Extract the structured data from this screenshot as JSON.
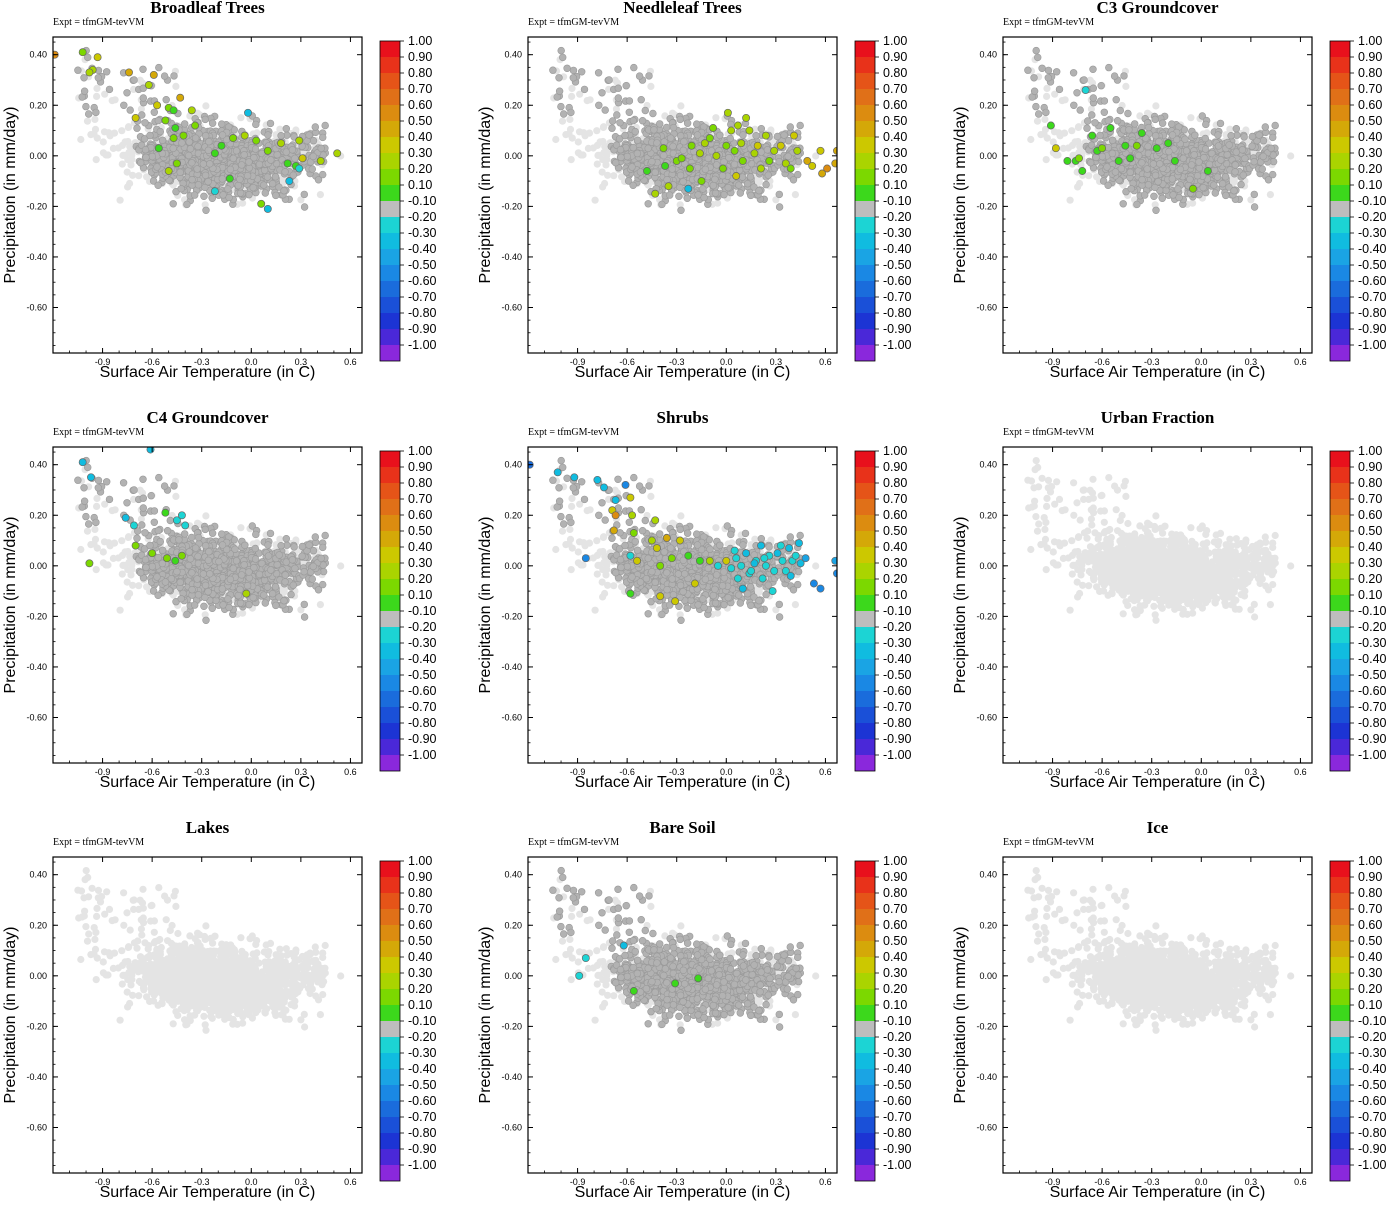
{
  "figure": {
    "expt_label": "Expt = tfmGM-tevVM",
    "xlabel": "Surface Air Temperature (in C)",
    "ylabel": "Precipitation (in mm/day)"
  },
  "axes": {
    "xlim": [
      -1.2,
      0.67
    ],
    "ylim": [
      -0.78,
      0.47
    ],
    "xticks": [
      -0.9,
      -0.6,
      -0.3,
      0.0,
      0.3,
      0.6
    ],
    "xtick_labels": [
      "-0.9",
      "-0.6",
      "-0.3",
      "0.0",
      "0.3",
      "0.6"
    ],
    "yticks": [
      0.4,
      0.2,
      0.0,
      -0.2,
      -0.4,
      -0.6
    ],
    "ytick_labels": [
      "0.40",
      "0.20",
      "0.00",
      "-0.20",
      "-0.40",
      "-0.60"
    ]
  },
  "colorbar": {
    "labels": [
      "1.00",
      "0.90",
      "0.80",
      "0.70",
      "0.60",
      "0.50",
      "0.40",
      "0.30",
      "0.20",
      "0.10",
      "-0.10",
      "-0.20",
      "-0.30",
      "-0.40",
      "-0.50",
      "-0.60",
      "-0.70",
      "-0.80",
      "-0.90",
      "-1.00"
    ],
    "colors": [
      "#e8101c",
      "#e8321a",
      "#e55418",
      "#e07018",
      "#dc8c10",
      "#d4a808",
      "#ccc800",
      "#aad400",
      "#7cd800",
      "#3cd81c",
      "#bdbdbd",
      "#1cd4d4",
      "#10bce0",
      "#1aa4e4",
      "#1a88e4",
      "#1a6cdc",
      "#1a50d8",
      "#1c34d4",
      "#4a28d8",
      "#8a28dc"
    ],
    "background_point_color": "#e4e4e4",
    "zero_point_color": "#b2b2b2"
  },
  "chart_data": [
    {
      "type": "scatter",
      "title": "Broadleaf Trees",
      "xlabel": "Surface Air Temperature (in C)",
      "ylabel": "Precipitation (in mm/day)",
      "xlim": [
        -1.2,
        0.67
      ],
      "ylim": [
        -0.78,
        0.47
      ],
      "colorscale": [
        -1.0,
        1.0
      ],
      "highlight_points": [
        [
          -1.19,
          0.4,
          0.6
        ],
        [
          -1.02,
          0.41,
          0.2
        ],
        [
          -0.93,
          0.39,
          0.4
        ],
        [
          -0.96,
          0.34,
          0.3
        ],
        [
          -0.98,
          0.33,
          0.3
        ],
        [
          -0.74,
          0.33,
          0.5
        ],
        [
          -0.59,
          0.32,
          0.5
        ],
        [
          -0.62,
          0.28,
          0.3
        ],
        [
          -0.43,
          0.23,
          0.5
        ],
        [
          -0.57,
          0.2,
          0.4
        ],
        [
          -0.5,
          0.19,
          0.2
        ],
        [
          -0.47,
          0.18,
          0.1
        ],
        [
          -0.36,
          0.18,
          0.3
        ],
        [
          -0.7,
          0.15,
          0.4
        ],
        [
          -0.52,
          0.14,
          0.2
        ],
        [
          -0.46,
          0.11,
          0.1
        ],
        [
          -0.41,
          0.08,
          0.2
        ],
        [
          -0.47,
          0.07,
          0.2
        ],
        [
          -0.56,
          0.03,
          0.1
        ],
        [
          -0.45,
          -0.03,
          0.2
        ],
        [
          -0.5,
          -0.06,
          0.3
        ],
        [
          -0.18,
          0.04,
          0.1
        ],
        [
          -0.22,
          0.01,
          0.1
        ],
        [
          -0.11,
          0.07,
          0.2
        ],
        [
          -0.04,
          0.08,
          0.3
        ],
        [
          0.03,
          0.06,
          0.2
        ],
        [
          0.1,
          0.02,
          0.2
        ],
        [
          0.18,
          0.05,
          0.3
        ],
        [
          0.22,
          -0.03,
          0.1
        ],
        [
          0.29,
          0.06,
          0.3
        ],
        [
          0.31,
          -0.01,
          0.4
        ],
        [
          0.42,
          -0.02,
          0.3
        ],
        [
          0.52,
          0.01,
          0.3
        ],
        [
          0.27,
          -0.04,
          0.1
        ],
        [
          -0.02,
          0.17,
          -0.3
        ],
        [
          0.23,
          -0.1,
          -0.3
        ],
        [
          0.29,
          -0.05,
          -0.2
        ],
        [
          0.1,
          -0.21,
          -0.3
        ],
        [
          -0.22,
          -0.14,
          -0.2
        ],
        [
          0.06,
          -0.19,
          0.2
        ],
        [
          -0.13,
          -0.09,
          0.1
        ],
        [
          -0.34,
          0.12,
          0.2
        ]
      ]
    },
    {
      "type": "scatter",
      "title": "Needleleaf Trees",
      "xlabel": "Surface Air Temperature (in C)",
      "ylabel": "Precipitation (in mm/day)",
      "xlim": [
        -1.2,
        0.67
      ],
      "ylim": [
        -0.78,
        0.47
      ],
      "colorscale": [
        -1.0,
        1.0
      ],
      "highlight_points": [
        [
          -0.48,
          -0.06,
          0.1
        ],
        [
          -0.37,
          -0.04,
          0.1
        ],
        [
          -0.3,
          -0.02,
          0.2
        ],
        [
          -0.43,
          -0.15,
          0.3
        ],
        [
          -0.35,
          -0.12,
          0.3
        ],
        [
          -0.22,
          -0.05,
          0.2
        ],
        [
          -0.21,
          0.04,
          0.2
        ],
        [
          -0.16,
          0.01,
          0.3
        ],
        [
          -0.13,
          0.05,
          0.3
        ],
        [
          -0.1,
          0.07,
          0.2
        ],
        [
          -0.06,
          0.0,
          0.3
        ],
        [
          -0.02,
          -0.05,
          0.2
        ],
        [
          0.01,
          0.17,
          0.3
        ],
        [
          0.03,
          0.1,
          0.3
        ],
        [
          0.05,
          0.02,
          0.2
        ],
        [
          0.06,
          -0.08,
          0.4
        ],
        [
          0.09,
          0.05,
          0.3
        ],
        [
          0.1,
          -0.02,
          0.2
        ],
        [
          0.14,
          0.1,
          0.3
        ],
        [
          0.17,
          0.01,
          0.3
        ],
        [
          0.19,
          0.04,
          0.4
        ],
        [
          0.21,
          -0.05,
          0.3
        ],
        [
          0.24,
          0.08,
          0.3
        ],
        [
          0.26,
          -0.02,
          0.2
        ],
        [
          0.29,
          0.02,
          0.3
        ],
        [
          0.33,
          0.04,
          0.4
        ],
        [
          0.36,
          -0.03,
          0.3
        ],
        [
          0.41,
          0.08,
          0.4
        ],
        [
          0.43,
          0.02,
          0.3
        ],
        [
          0.39,
          -0.05,
          0.2
        ],
        [
          0.49,
          -0.02,
          0.5
        ],
        [
          0.52,
          -0.04,
          0.4
        ],
        [
          0.58,
          -0.07,
          0.5
        ],
        [
          0.61,
          -0.05,
          0.6
        ],
        [
          0.66,
          -0.03,
          0.5
        ],
        [
          0.67,
          0.02,
          0.5
        ],
        [
          0.57,
          0.02,
          0.4
        ],
        [
          0.12,
          0.15,
          0.3
        ],
        [
          -0.27,
          -0.01,
          0.2
        ],
        [
          -0.08,
          0.11,
          0.2
        ],
        [
          0.0,
          0.04,
          0.2
        ],
        [
          0.07,
          0.12,
          0.3
        ],
        [
          -0.15,
          -0.1,
          0.2
        ],
        [
          -0.23,
          -0.13,
          -0.3
        ],
        [
          -0.38,
          0.03,
          0.2
        ]
      ]
    },
    {
      "type": "scatter",
      "title": "C3 Groundcover",
      "xlabel": "Surface Air Temperature (in C)",
      "ylabel": "Precipitation (in mm/day)",
      "xlim": [
        -1.2,
        0.67
      ],
      "ylim": [
        -0.78,
        0.47
      ],
      "colorscale": [
        -1.0,
        1.0
      ],
      "highlight_points": [
        [
          -0.91,
          0.12,
          0.1
        ],
        [
          -0.88,
          0.03,
          0.4
        ],
        [
          -0.81,
          -0.02,
          0.1
        ],
        [
          -0.76,
          -0.02,
          0.1
        ],
        [
          -0.72,
          -0.06,
          0.1
        ],
        [
          -0.74,
          -0.01,
          0.2
        ],
        [
          -0.63,
          0.02,
          0.1
        ],
        [
          -0.5,
          -0.02,
          0.1
        ],
        [
          -0.46,
          0.04,
          0.1
        ],
        [
          -0.39,
          0.04,
          0.2
        ],
        [
          -0.36,
          0.09,
          0.1
        ],
        [
          -0.27,
          0.03,
          0.1
        ],
        [
          -0.16,
          -0.02,
          0.1
        ],
        [
          -0.05,
          -0.13,
          0.2
        ],
        [
          -0.66,
          0.08,
          0.1
        ],
        [
          -0.6,
          0.03,
          0.2
        ],
        [
          -0.55,
          0.11,
          0.1
        ],
        [
          -0.7,
          0.26,
          -0.2
        ],
        [
          -0.43,
          -0.01,
          0.1
        ],
        [
          0.04,
          -0.06,
          0.1
        ],
        [
          -0.2,
          0.05,
          0.1
        ]
      ]
    },
    {
      "type": "scatter",
      "title": "C4 Groundcover",
      "xlabel": "Surface Air Temperature (in C)",
      "ylabel": "Precipitation (in mm/day)",
      "xlim": [
        -1.2,
        0.67
      ],
      "ylim": [
        -0.78,
        0.47
      ],
      "colorscale": [
        -1.0,
        1.0
      ],
      "highlight_points": [
        [
          -1.02,
          0.41,
          -0.3
        ],
        [
          -0.97,
          0.35,
          -0.3
        ],
        [
          -0.61,
          0.46,
          -0.3
        ],
        [
          -0.45,
          0.18,
          -0.2
        ],
        [
          -0.42,
          0.2,
          -0.2
        ],
        [
          -0.4,
          0.16,
          -0.2
        ],
        [
          -0.52,
          0.21,
          0.1
        ],
        [
          -0.6,
          0.05,
          0.2
        ],
        [
          -0.51,
          0.03,
          0.2
        ],
        [
          -0.42,
          0.04,
          0.2
        ],
        [
          -0.46,
          0.02,
          0.1
        ],
        [
          -0.7,
          0.08,
          0.2
        ],
        [
          -0.98,
          0.01,
          0.2
        ],
        [
          -0.71,
          0.16,
          -0.2
        ],
        [
          -0.03,
          -0.11,
          0.3
        ],
        [
          -0.76,
          0.19,
          -0.3
        ]
      ]
    },
    {
      "type": "scatter",
      "title": "Shrubs",
      "xlabel": "Surface Air Temperature (in C)",
      "ylabel": "Precipitation (in mm/day)",
      "xlim": [
        -1.2,
        0.67
      ],
      "ylim": [
        -0.78,
        0.47
      ],
      "colorscale": [
        -1.0,
        1.0
      ],
      "highlight_points": [
        [
          -1.19,
          0.4,
          -0.6
        ],
        [
          -1.02,
          0.37,
          -0.3
        ],
        [
          -0.92,
          0.35,
          -0.3
        ],
        [
          -0.78,
          0.34,
          -0.3
        ],
        [
          -0.74,
          0.31,
          -0.3
        ],
        [
          -0.61,
          0.32,
          -0.5
        ],
        [
          -0.58,
          0.27,
          0.4
        ],
        [
          -0.67,
          0.26,
          -0.3
        ],
        [
          -0.69,
          0.22,
          0.4
        ],
        [
          -0.67,
          0.2,
          0.6
        ],
        [
          -0.57,
          0.2,
          0.3
        ],
        [
          -0.68,
          0.14,
          0.5
        ],
        [
          -0.56,
          0.13,
          0.2
        ],
        [
          -0.43,
          0.18,
          0.3
        ],
        [
          -0.36,
          0.11,
          0.5
        ],
        [
          -0.45,
          0.1,
          0.3
        ],
        [
          -0.42,
          0.07,
          0.4
        ],
        [
          -0.28,
          0.1,
          0.4
        ],
        [
          -0.33,
          0.03,
          0.2
        ],
        [
          -0.23,
          0.04,
          0.1
        ],
        [
          -0.4,
          0.0,
          0.2
        ],
        [
          -0.54,
          0.02,
          0.4
        ],
        [
          -0.58,
          0.04,
          -0.2
        ],
        [
          -0.85,
          0.03,
          -0.5
        ],
        [
          -0.4,
          -0.12,
          0.4
        ],
        [
          -0.58,
          -0.11,
          0.1
        ],
        [
          -0.31,
          -0.14,
          0.4
        ],
        [
          -0.19,
          -0.07,
          0.4
        ],
        [
          -0.16,
          0.02,
          0.1
        ],
        [
          -0.1,
          0.02,
          0.3
        ],
        [
          -0.05,
          0.0,
          -0.2
        ],
        [
          0.0,
          0.02,
          0.4
        ],
        [
          0.03,
          -0.01,
          -0.2
        ],
        [
          0.06,
          0.03,
          -0.2
        ],
        [
          0.09,
          0.0,
          -0.2
        ],
        [
          0.12,
          0.05,
          -0.3
        ],
        [
          0.14,
          -0.03,
          -0.2
        ],
        [
          0.18,
          0.02,
          -0.2
        ],
        [
          0.21,
          0.08,
          -0.3
        ],
        [
          0.24,
          0.0,
          -0.2
        ],
        [
          0.26,
          0.04,
          -0.2
        ],
        [
          0.29,
          -0.02,
          -0.2
        ],
        [
          0.31,
          0.05,
          -0.3
        ],
        [
          0.34,
          0.02,
          -0.2
        ],
        [
          0.36,
          -0.02,
          -0.2
        ],
        [
          0.38,
          0.07,
          -0.3
        ],
        [
          0.4,
          0.02,
          -0.2
        ],
        [
          0.42,
          0.04,
          -0.2
        ],
        [
          0.44,
          0.09,
          -0.3
        ],
        [
          0.48,
          0.03,
          -0.4
        ],
        [
          0.53,
          -0.07,
          -0.5
        ],
        [
          0.57,
          -0.09,
          -0.5
        ],
        [
          0.66,
          0.02,
          -0.4
        ],
        [
          0.67,
          -0.03,
          -0.5
        ],
        [
          0.07,
          -0.05,
          -0.2
        ],
        [
          0.1,
          -0.09,
          -0.3
        ],
        [
          0.22,
          -0.05,
          -0.2
        ],
        [
          0.28,
          -0.1,
          -0.2
        ],
        [
          0.17,
          0.01,
          -0.3
        ],
        [
          0.45,
          0.01,
          -0.3
        ],
        [
          0.05,
          0.06,
          -0.2
        ],
        [
          0.33,
          0.08,
          -0.2
        ],
        [
          0.39,
          -0.04,
          -0.3
        ],
        [
          0.23,
          0.03,
          -0.2
        ],
        [
          0.15,
          -0.02,
          -0.2
        ]
      ]
    },
    {
      "type": "scatter",
      "title": "Urban Fraction",
      "xlabel": "Surface Air Temperature (in C)",
      "ylabel": "Precipitation (in mm/day)",
      "xlim": [
        -1.2,
        0.67
      ],
      "ylim": [
        -0.78,
        0.47
      ],
      "colorscale": [
        -1.0,
        1.0
      ],
      "highlight_points": []
    },
    {
      "type": "scatter",
      "title": "Lakes",
      "xlabel": "Surface Air Temperature (in C)",
      "ylabel": "Precipitation (in mm/day)",
      "xlim": [
        -1.2,
        0.67
      ],
      "ylim": [
        -0.78,
        0.47
      ],
      "colorscale": [
        -1.0,
        1.0
      ],
      "highlight_points": []
    },
    {
      "type": "scatter",
      "title": "Bare Soil",
      "xlabel": "Surface Air Temperature (in C)",
      "ylabel": "Precipitation (in mm/day)",
      "xlim": [
        -1.2,
        0.67
      ],
      "ylim": [
        -0.78,
        0.47
      ],
      "colorscale": [
        -1.0,
        1.0
      ],
      "highlight_points": [
        [
          -0.85,
          0.07,
          -0.2
        ],
        [
          -0.89,
          0.0,
          -0.2
        ],
        [
          -0.56,
          -0.06,
          0.1
        ],
        [
          -0.17,
          -0.01,
          0.1
        ],
        [
          -0.31,
          -0.03,
          0.1
        ],
        [
          -0.62,
          0.12,
          -0.3
        ]
      ]
    },
    {
      "type": "scatter",
      "title": "Ice",
      "xlabel": "Surface Air Temperature (in C)",
      "ylabel": "Precipitation (in mm/day)",
      "xlim": [
        -1.2,
        0.67
      ],
      "ylim": [
        -0.78,
        0.47
      ],
      "colorscale": [
        -1.0,
        1.0
      ],
      "highlight_points": []
    }
  ]
}
